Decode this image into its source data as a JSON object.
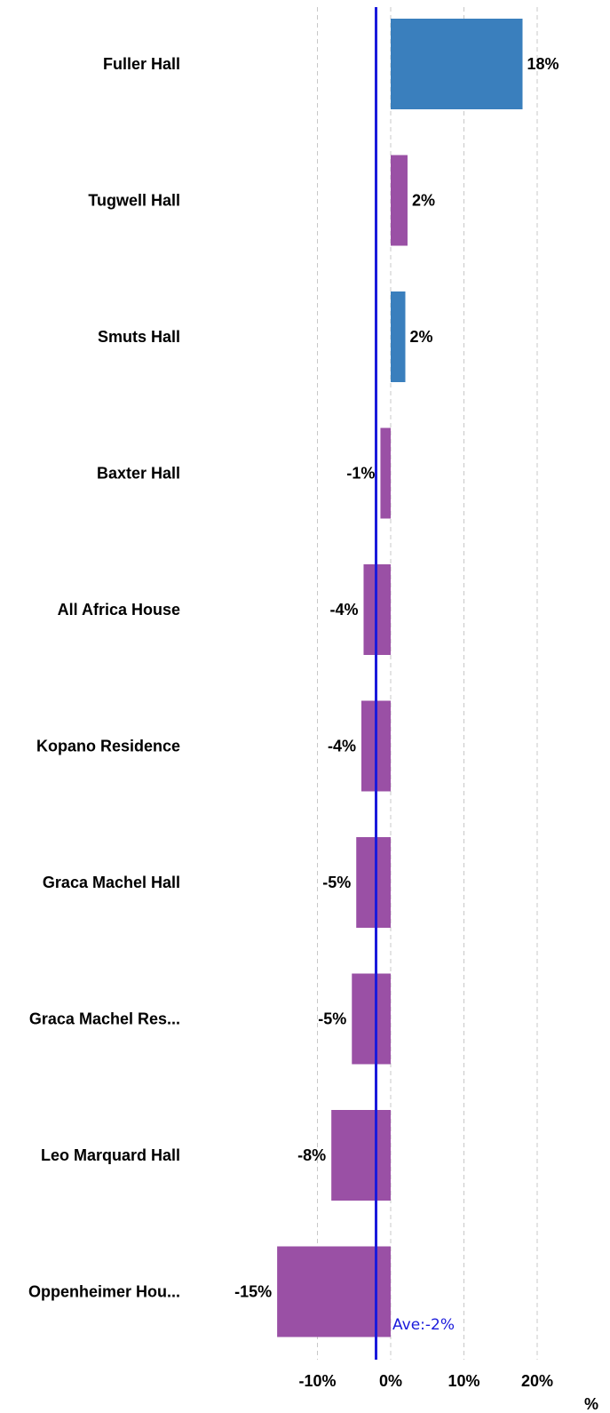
{
  "chart_data": {
    "type": "bar",
    "orientation": "horizontal",
    "categories": [
      "Fuller Hall",
      "Tugwell Hall",
      "Smuts Hall",
      "Baxter Hall",
      "All Africa House",
      "Kopano Residence",
      "Graca Machel Hall",
      "Graca Machel Res...",
      "Leo Marquard Hall",
      "Oppenheimer Hou..."
    ],
    "values": [
      18,
      2.3,
      2.0,
      -1.4,
      -3.7,
      -4.0,
      -4.7,
      -5.3,
      -8.1,
      -15.5
    ],
    "value_labels": [
      "18%",
      "2%",
      "2%",
      "-1%",
      "-4%",
      "-4%",
      "-5%",
      "-5%",
      "-8%",
      "-15%"
    ],
    "bar_colors": [
      "#3a7fbd",
      "#9a50a5",
      "#3a7fbd",
      "#9a50a5",
      "#9a50a5",
      "#9a50a5",
      "#9a50a5",
      "#9a50a5",
      "#9a50a5",
      "#9a50a5"
    ],
    "xlim": [
      -15.5,
      25
    ],
    "xticks": [
      -10,
      0,
      10,
      20
    ],
    "xtick_labels": [
      "-10%",
      "0%",
      "10%",
      "20%"
    ],
    "xlabel": "%",
    "grid": "vertical-dashed",
    "average": {
      "value": -2,
      "label": "Ave:-2%",
      "color": "#1a1adb"
    }
  }
}
